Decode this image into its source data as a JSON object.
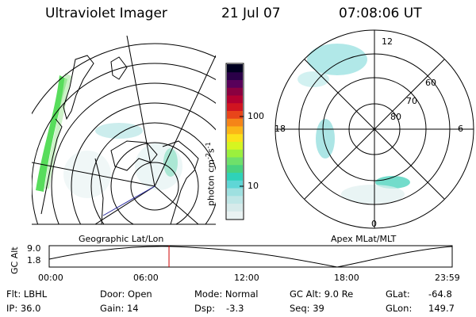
{
  "header": {
    "instrument": "Ultraviolet Imager",
    "date": "21 Jul 07",
    "time": "07:08:06 UT"
  },
  "geo_panel": {
    "label": "Geographic Lat/Lon"
  },
  "apex_panel": {
    "label": "Apex MLat/MLT",
    "mlt_labels": [
      "12",
      "18",
      "6",
      "0"
    ],
    "mlat_labels": [
      "60",
      "70",
      "80"
    ]
  },
  "colorbar": {
    "unit_text": "photon cm",
    "unit_exp1": "-2",
    "unit_s": "s",
    "unit_exp2": "-1",
    "tick_labels": [
      "100",
      "10"
    ],
    "colors": [
      "#e9f2f2",
      "#d6eaea",
      "#bfe6e6",
      "#9ee0e0",
      "#5fd6d6",
      "#2fd2b8",
      "#49d27f",
      "#6fe06a",
      "#9bf03d",
      "#d6f520",
      "#fbe11a",
      "#fbb617",
      "#f58518",
      "#e8451a",
      "#d01420",
      "#b30030",
      "#8a0040",
      "#58005a",
      "#2a0048",
      "#000020"
    ]
  },
  "timeline": {
    "y_axis_label": "GC Alt",
    "y_ticks": [
      "9.0",
      "1.8"
    ],
    "x_ticks": [
      "00:00",
      "06:00",
      "12:00",
      "18:00",
      "23:59"
    ],
    "current_fraction": 0.2973
  },
  "info": {
    "filter": "Flt: LBHL",
    "ip": "IP: 36.0",
    "door": "Door: Open",
    "gain": "Gain: 14",
    "mode_label": "Mode: Normal",
    "dsp_label": "Dsp:",
    "dsp_value": "-3.3",
    "gc_alt": "GC Alt: 9.0 Re",
    "seq": "Seq: 39",
    "glat_label": "GLat:",
    "glat_value": "-64.8",
    "glon_label": "GLon:",
    "glon_value": "149.7"
  }
}
